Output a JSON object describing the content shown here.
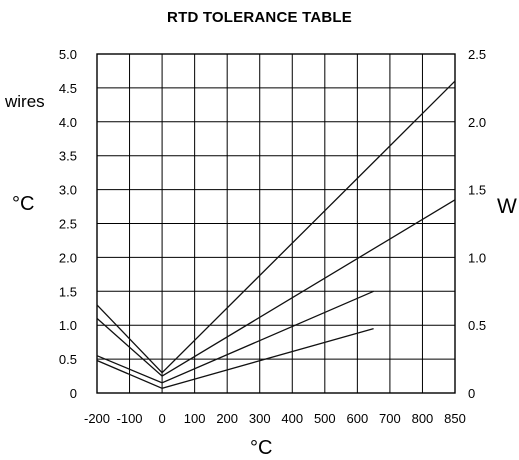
{
  "chart_data": {
    "type": "line",
    "title": "RTD TOLERANCE TABLE",
    "xlabel_text": "°C",
    "ylabel_left_unit": "°C",
    "ylabel_left_top": "wires",
    "ylabel_right": "W",
    "x_ticks": [
      "-200",
      "-100",
      "0",
      "100",
      "200",
      "300",
      "400",
      "500",
      "600",
      "700",
      "800",
      "850"
    ],
    "x_tick_values": [
      -200,
      -100,
      0,
      100,
      200,
      300,
      400,
      500,
      600,
      700,
      800,
      850
    ],
    "y_left_ticks": [
      "0",
      "0.5",
      "1.0",
      "1.5",
      "2.0",
      "2.5",
      "3.0",
      "3.5",
      "4.0",
      "4.5",
      "5.0"
    ],
    "y_left_values": [
      0,
      0.5,
      1.0,
      1.5,
      2.0,
      2.5,
      3.0,
      3.5,
      4.0,
      4.5,
      5.0
    ],
    "y_right_ticks": [
      "0",
      "0.5",
      "1.0",
      "1.5",
      "2.0",
      "2.5"
    ],
    "y_right_values": [
      0,
      0.5,
      1.0,
      1.5,
      2.0,
      2.5
    ],
    "xlim": [
      -200,
      850
    ],
    "ylim_left": [
      0,
      5.0
    ],
    "ylim_right": [
      0,
      2.5
    ],
    "grid": true,
    "series": [
      {
        "x": [
          -200,
          0,
          850
        ],
        "y": [
          1.3,
          0.3,
          4.6
        ]
      },
      {
        "x": [
          -200,
          0,
          850
        ],
        "y": [
          1.1,
          0.25,
          2.85
        ]
      },
      {
        "x": [
          -200,
          0,
          650
        ],
        "y": [
          0.55,
          0.15,
          1.5
        ]
      },
      {
        "x": [
          -200,
          0,
          650
        ],
        "y": [
          0.48,
          0.07,
          0.95
        ]
      }
    ]
  }
}
